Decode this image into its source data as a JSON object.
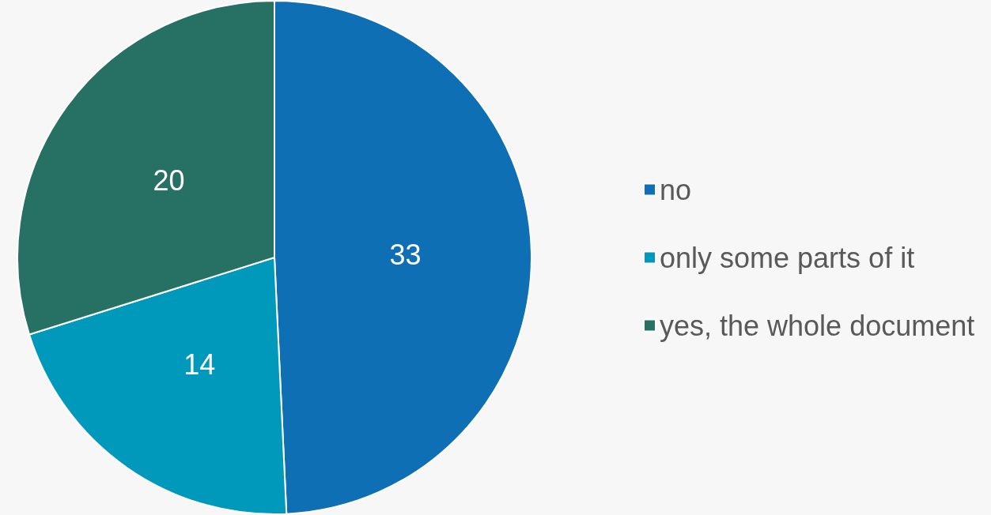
{
  "chart_data": {
    "type": "pie",
    "categories": [
      "no",
      "only some parts of it",
      "yes, the whole document"
    ],
    "values": [
      33,
      14,
      20
    ],
    "colors": [
      "#0f6fb5",
      "#0099bb",
      "#267164"
    ],
    "data_labels": true,
    "legend": "right"
  }
}
